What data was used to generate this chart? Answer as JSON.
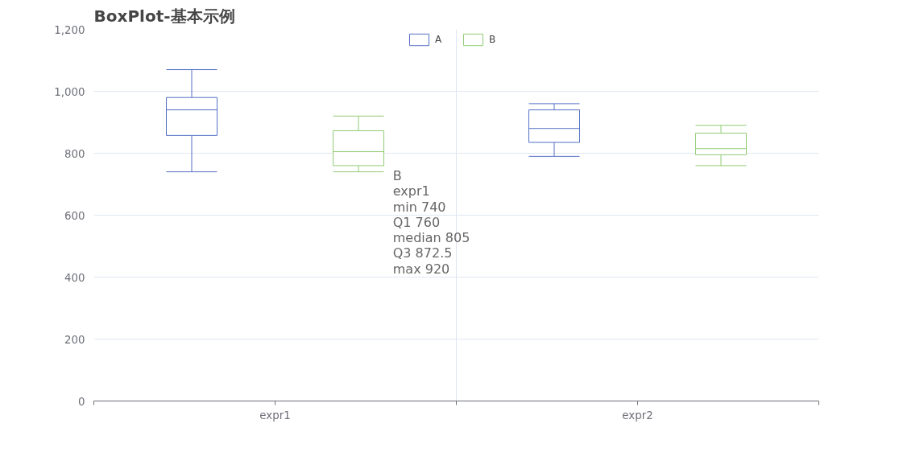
{
  "chart_data": {
    "type": "box",
    "title": "BoxPlot-基本示例",
    "categories": [
      "expr1",
      "expr2"
    ],
    "series": [
      {
        "name": "A",
        "color": "#5470c6",
        "boxes": [
          {
            "low": 740,
            "q1": 857.5,
            "median": 940,
            "q3": 980,
            "high": 1070
          },
          {
            "low": 790,
            "q1": 835,
            "median": 880,
            "q3": 940,
            "high": 960
          }
        ]
      },
      {
        "name": "B",
        "color": "#91cc75",
        "boxes": [
          {
            "low": 740,
            "q1": 760,
            "median": 805,
            "q3": 872.5,
            "high": 920
          },
          {
            "low": 760,
            "q1": 795,
            "median": 815,
            "q3": 865,
            "high": 890
          }
        ]
      }
    ],
    "ylim": [
      0,
      1200
    ],
    "yticks": [
      0,
      {
        "value": 200,
        "label": "200"
      },
      {
        "value": 400,
        "label": "400"
      },
      {
        "value": 600,
        "label": "600"
      },
      {
        "value": 800,
        "label": "800"
      },
      {
        "value": 1000,
        "label": "1,000"
      },
      {
        "value": 1200,
        "label": "1,200"
      }
    ],
    "grid": true,
    "legend": "top",
    "annotations": [
      "B",
      "expr1",
      "min 740",
      "Q1 760",
      "median 805",
      "Q3 872.5",
      "max 920"
    ]
  }
}
